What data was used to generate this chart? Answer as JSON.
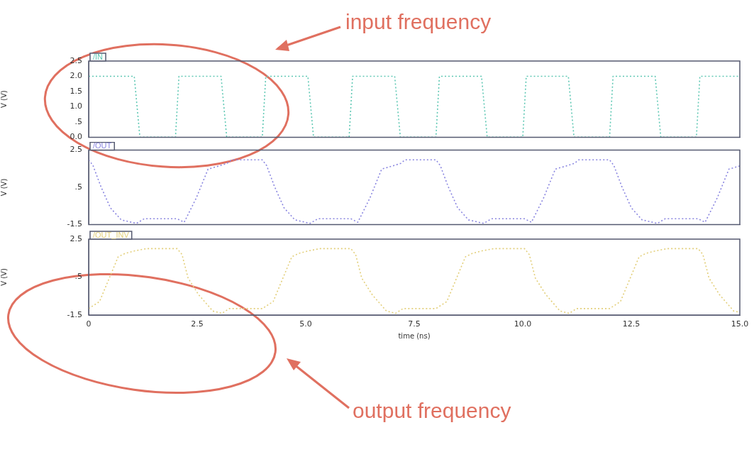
{
  "chart_data": [
    {
      "type": "line",
      "ylabel": "V (V)",
      "legend": "top left",
      "line_style": "dotted",
      "tick_labels": "y",
      "annotations": [
        "input frequency"
      ],
      "xlim": [
        0,
        15
      ],
      "xticks": [
        0,
        2.5,
        5.0,
        7.5,
        10.0,
        12.5,
        15.0
      ],
      "ylim": [
        0,
        2.5
      ],
      "yticks": [
        {
          "value": 0,
          "label": "0.0"
        },
        {
          "value": 0.5,
          "label": ".5"
        },
        {
          "value": 1,
          "label": "1.0"
        },
        {
          "value": 1.5,
          "label": "1.5"
        },
        {
          "value": 2,
          "label": "2.0"
        },
        {
          "value": 2.5,
          "label": "2.5"
        }
      ],
      "series": [
        {
          "name": "/IN",
          "color": "#5fc8b4",
          "x": [
            0,
            1.05,
            1.18,
            2.0,
            2.08,
            3.05,
            3.18,
            4.0,
            4.08,
            5.05,
            5.18,
            6.0,
            6.08,
            7.05,
            7.18,
            8.0,
            8.08,
            9.05,
            9.18,
            10.0,
            10.08,
            11.05,
            11.18,
            12.0,
            12.08,
            13.05,
            13.18,
            14.0,
            14.08,
            15.0
          ],
          "values": [
            2,
            2,
            0,
            0,
            2,
            2,
            0,
            0,
            2,
            2,
            0,
            0,
            2,
            2,
            0,
            0,
            2,
            2,
            0,
            0,
            2,
            2,
            0,
            0,
            2,
            2,
            0,
            0,
            2,
            2
          ]
        }
      ]
    },
    {
      "type": "line",
      "ylabel": "V (V)",
      "legend": "top left",
      "line_style": "dotted",
      "tick_labels": "y",
      "xlim": [
        0,
        15
      ],
      "xticks": [
        0,
        2.5,
        5.0,
        7.5,
        10.0,
        12.5,
        15.0
      ],
      "ylim": [
        -1.5,
        2.5
      ],
      "yticks": [
        {
          "value": -1.5,
          "label": "-1.5"
        },
        {
          "value": 0.5,
          "label": ".5"
        },
        {
          "value": 2.5,
          "label": "2.5"
        }
      ],
      "series": [
        {
          "name": "/OUT",
          "color": "#8a86e0",
          "x": [
            0,
            0.1,
            0.28,
            0.5,
            0.75,
            1.1,
            1.28,
            2.04,
            2.2,
            2.48,
            2.75,
            3.0,
            3.19,
            3.29,
            4.0,
            4.1,
            4.28,
            4.5,
            4.75,
            5.1,
            5.28,
            6.04,
            6.2,
            6.48,
            6.75,
            7.0,
            7.19,
            7.29,
            8.0,
            8.1,
            8.28,
            8.5,
            8.75,
            9.1,
            9.28,
            10.04,
            10.2,
            10.48,
            10.75,
            11.0,
            11.19,
            11.29,
            12.0,
            12.1,
            12.28,
            12.5,
            12.75,
            13.1,
            13.28,
            14.04,
            14.2,
            14.48,
            14.75,
            15.0
          ],
          "values": [
            1.98,
            1.67,
            0.55,
            -0.6,
            -1.25,
            -1.44,
            -1.19,
            -1.19,
            -1.38,
            -0.07,
            1.48,
            1.65,
            1.79,
            1.98,
            1.98,
            1.67,
            0.55,
            -0.6,
            -1.25,
            -1.44,
            -1.19,
            -1.19,
            -1.38,
            -0.07,
            1.48,
            1.65,
            1.79,
            1.98,
            1.98,
            1.67,
            0.55,
            -0.6,
            -1.25,
            -1.44,
            -1.19,
            -1.19,
            -1.38,
            -0.07,
            1.48,
            1.65,
            1.79,
            1.98,
            1.98,
            1.67,
            0.55,
            -0.6,
            -1.25,
            -1.44,
            -1.19,
            -1.19,
            -1.38,
            -0.07,
            1.48,
            1.65
          ]
        }
      ]
    },
    {
      "type": "line",
      "ylabel": "V (V)",
      "xlabel": "time (ns)",
      "legend": "top left",
      "line_style": "dotted",
      "annotations": [
        "output frequency"
      ],
      "xlim": [
        0,
        15
      ],
      "xticks": [
        0,
        2.5,
        {
          "value": 5,
          "label": "5.0"
        },
        7.5,
        {
          "value": 10,
          "label": "10.0"
        },
        12.5,
        {
          "value": 15,
          "label": "15.0"
        }
      ],
      "ylim": [
        -1.5,
        2.5
      ],
      "yticks": [
        {
          "value": -1.5,
          "label": "-1.5"
        },
        {
          "value": 0.5,
          "label": ".5"
        },
        {
          "value": 2.5,
          "label": "2.5"
        }
      ],
      "series": [
        {
          "name": "/OUT_INV",
          "color": "#e3cf7a",
          "x": [
            0,
            0.25,
            0.68,
            0.84,
            1.06,
            1.33,
            2.04,
            2.15,
            2.29,
            2.53,
            2.86,
            3.07,
            3.24,
            4.0,
            4.25,
            4.68,
            4.84,
            5.06,
            5.33,
            6.04,
            6.15,
            6.29,
            6.53,
            6.86,
            7.07,
            7.24,
            8.0,
            8.25,
            8.68,
            8.84,
            9.06,
            9.33,
            10.04,
            10.15,
            10.29,
            10.53,
            10.86,
            11.07,
            11.24,
            12.0,
            12.25,
            12.68,
            12.84,
            13.06,
            13.33,
            14.04,
            14.15,
            14.29,
            14.53,
            14.86,
            15.0
          ],
          "values": [
            -1.16,
            -0.79,
            1.57,
            1.75,
            1.88,
            2.0,
            2.0,
            1.69,
            0.45,
            -0.42,
            -1.29,
            -1.41,
            -1.16,
            -1.16,
            -0.79,
            1.57,
            1.75,
            1.88,
            2.0,
            2.0,
            1.69,
            0.45,
            -0.42,
            -1.29,
            -1.41,
            -1.16,
            -1.16,
            -0.79,
            1.57,
            1.75,
            1.88,
            2.0,
            2.0,
            1.69,
            0.45,
            -0.42,
            -1.29,
            -1.41,
            -1.16,
            -1.16,
            -0.79,
            1.57,
            1.75,
            1.88,
            2.0,
            2.0,
            1.69,
            0.45,
            -0.42,
            -1.29,
            -1.35
          ]
        }
      ]
    }
  ]
}
